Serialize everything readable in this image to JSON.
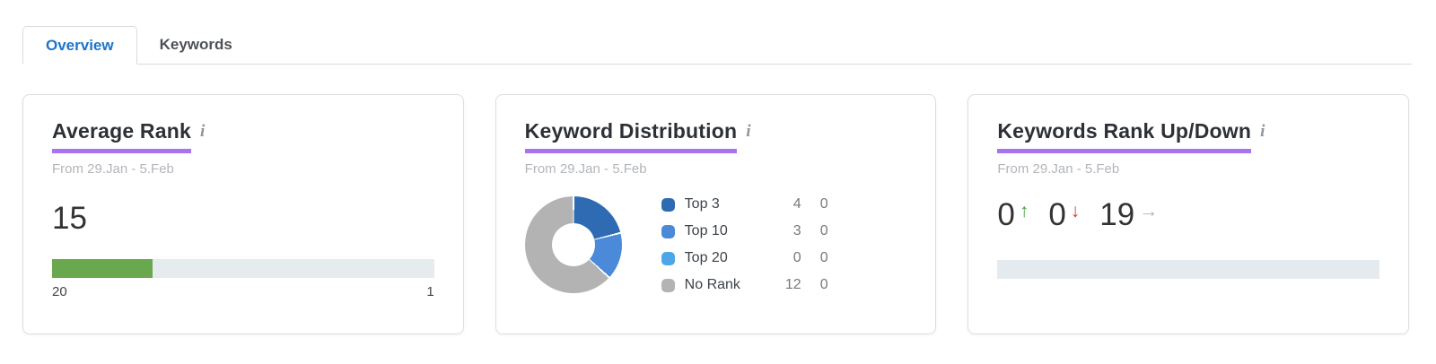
{
  "colors": {
    "accent_underline": "#a873f3",
    "tab_active_text": "#1d74c9",
    "bar_green": "#6aa84e",
    "bar_track": "#e6ebee",
    "up_green": "#47a23c",
    "down_red": "#dc392e",
    "neutral_gray": "#b3b3b3"
  },
  "tabs": {
    "items": [
      {
        "label": "Overview",
        "active": true
      },
      {
        "label": "Keywords",
        "active": false
      }
    ]
  },
  "info_icon_glyph": "i",
  "arrows": {
    "up": "↑",
    "down": "↓",
    "right": "→"
  },
  "chart_data": [
    {
      "type": "bar",
      "title": "Average Rank",
      "subtitle": "From 29.Jan - 5.Feb",
      "value": 15,
      "value_label": "15",
      "scale": {
        "left": 20,
        "right": 1
      },
      "scale_left_label": "20",
      "scale_right_label": "1",
      "bar_color": "#6aa84e",
      "track_color": "#e6ebee"
    },
    {
      "type": "pie",
      "donut": true,
      "title": "Keyword Distribution",
      "subtitle": "From 29.Jan - 5.Feb",
      "legend_position": "right",
      "series": [
        {
          "name": "Top 3",
          "value": 4,
          "change": 0,
          "color": "#2e6bb2"
        },
        {
          "name": "Top 10",
          "value": 3,
          "change": 0,
          "color": "#4a8ad8"
        },
        {
          "name": "Top 20",
          "value": 0,
          "change": 0,
          "color": "#4da6e8"
        },
        {
          "name": "No Rank",
          "value": 12,
          "change": 0,
          "color": "#b3b3b3"
        }
      ]
    },
    {
      "type": "bar",
      "title": "Keywords Rank Up/Down",
      "subtitle": "From 29.Jan - 5.Feb",
      "metrics": [
        {
          "label": "ranked up",
          "value": 0,
          "direction": "up"
        },
        {
          "label": "ranked down",
          "value": 0,
          "direction": "down"
        },
        {
          "label": "unchanged",
          "value": 19,
          "direction": "right"
        }
      ],
      "track_color": "#e4eaee"
    }
  ]
}
